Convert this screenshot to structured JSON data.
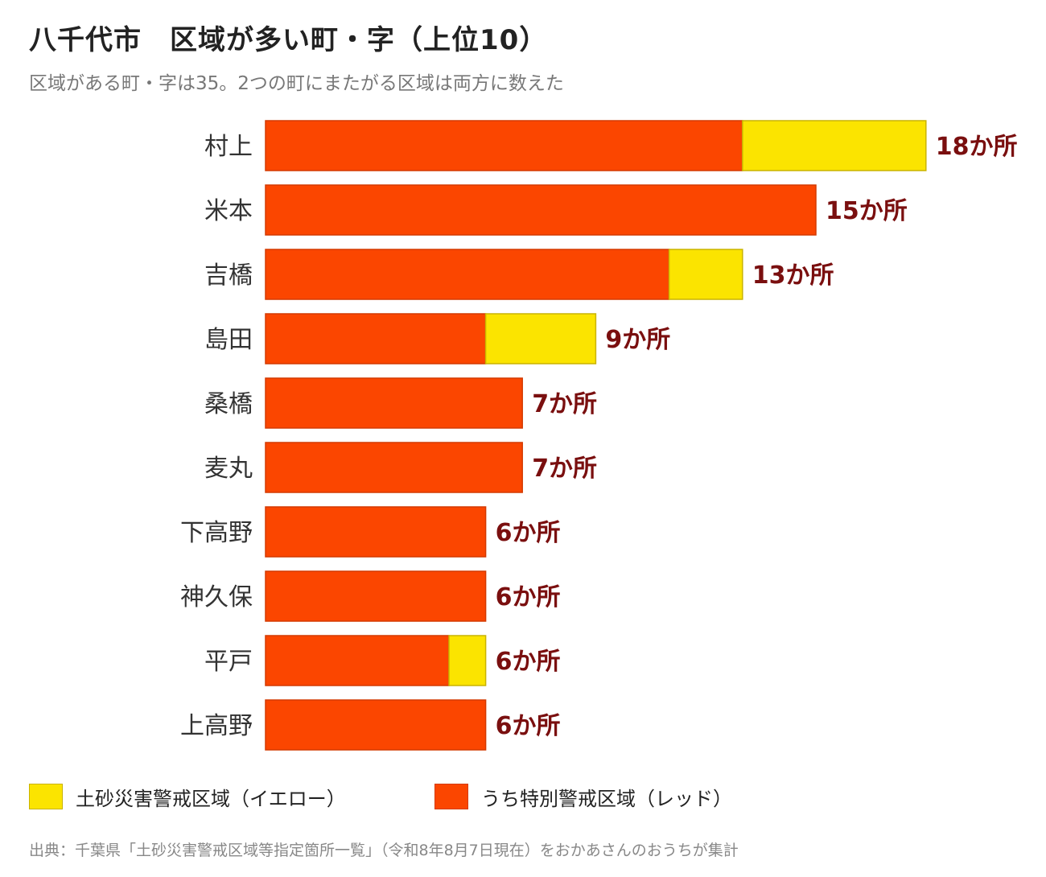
{
  "title": "八千代市　区域が多い町・字（上位10）",
  "subtitle": "区域がある町・字は35。2つの町にまたがる区域は両方に数えた",
  "legend": {
    "yellow_label": "土砂災害警戒区域（イエロー）",
    "red_label": "うち特別警戒区域（レッド）"
  },
  "source": "出典：千葉県「土砂災害警戒区域等指定箇所一覧」（令和8年8月7日現在）をおかあさんのおうちが集計",
  "colors": {
    "yellow": "#fbe400",
    "yellow_border": "#c9b300",
    "red": "#fb4600",
    "red_border": "#d43a00",
    "value_label": "#7a0f0f",
    "category_label": "#333333"
  },
  "chart_data": {
    "type": "bar",
    "orientation": "horizontal",
    "stacked": true,
    "categories": [
      "村上",
      "米本",
      "吉橋",
      "島田",
      "桑橋",
      "麦丸",
      "下高野",
      "神久保",
      "平戸",
      "上高野"
    ],
    "series": [
      {
        "name": "うち特別警戒区域（レッド）",
        "values": [
          13,
          15,
          11,
          6,
          7,
          7,
          6,
          6,
          5,
          6
        ]
      },
      {
        "name": "土砂災害警戒区域（イエロー）",
        "values": [
          5,
          0,
          2,
          3,
          0,
          0,
          0,
          0,
          1,
          0
        ]
      }
    ],
    "totals": [
      18,
      15,
      13,
      9,
      7,
      7,
      6,
      6,
      6,
      6
    ],
    "value_labels": [
      "18か所",
      "15か所",
      "13か所",
      "9か所",
      "7か所",
      "7か所",
      "6か所",
      "6か所",
      "6か所",
      "6か所"
    ],
    "xlim": [
      0,
      18
    ],
    "grid": false,
    "legend_position": "bottom"
  }
}
